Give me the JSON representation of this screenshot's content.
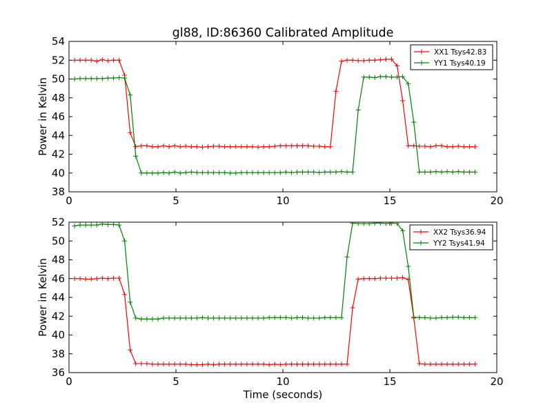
{
  "chart_data": [
    {
      "type": "line",
      "title": "gl88, ID:86360 Calibrated Amplitude",
      "xlabel": "",
      "ylabel": "Power in Kelvin",
      "xlim": [
        0,
        20
      ],
      "ylim": [
        38,
        54
      ],
      "x_ticks": [
        "0",
        "5",
        "10",
        "15",
        "20"
      ],
      "y_ticks": [
        "38",
        "40",
        "42",
        "44",
        "46",
        "48",
        "50",
        "52",
        "54"
      ],
      "grid": false,
      "legend_position": "top-right",
      "x": [
        0.26,
        0.52,
        0.78,
        1.04,
        1.3,
        1.56,
        1.82,
        2.08,
        2.34,
        2.6,
        2.86,
        3.12,
        3.38,
        3.64,
        3.9,
        4.16,
        4.42,
        4.68,
        4.94,
        5.2,
        5.46,
        5.72,
        5.98,
        6.24,
        6.5,
        6.76,
        7.02,
        7.28,
        7.54,
        7.8,
        8.06,
        8.32,
        8.58,
        8.84,
        9.1,
        9.36,
        9.62,
        9.88,
        10.14,
        10.4,
        10.66,
        10.92,
        11.18,
        11.44,
        11.7,
        11.96,
        12.22,
        12.48,
        12.74,
        13.0,
        13.26,
        13.52,
        13.78,
        14.04,
        14.3,
        14.56,
        14.82,
        15.08,
        15.34,
        15.6,
        15.86,
        16.12,
        16.38,
        16.64,
        16.9,
        17.16,
        17.42,
        17.68,
        17.94,
        18.2,
        18.46,
        18.72,
        18.98
      ],
      "series": [
        {
          "name": "XX1 Tsys42.83",
          "color": "#ff0000",
          "values": [
            52.0,
            52.0,
            52.0,
            52.0,
            51.9,
            52.05,
            51.95,
            52.0,
            52.0,
            50.4,
            44.3,
            42.8,
            42.9,
            42.9,
            42.8,
            42.8,
            42.9,
            42.8,
            42.9,
            42.8,
            42.85,
            42.8,
            42.8,
            42.75,
            42.8,
            42.85,
            42.85,
            42.8,
            42.8,
            42.8,
            42.8,
            42.8,
            42.8,
            42.75,
            42.8,
            42.8,
            42.85,
            42.9,
            42.9,
            42.9,
            42.9,
            42.9,
            42.9,
            42.85,
            42.85,
            42.8,
            42.8,
            48.7,
            51.9,
            52.0,
            52.0,
            51.95,
            51.95,
            52.0,
            52.0,
            52.05,
            52.1,
            52.1,
            51.4,
            47.7,
            42.9,
            42.9,
            42.85,
            42.85,
            42.8,
            42.9,
            42.9,
            42.8,
            42.8,
            42.85,
            42.8,
            42.8,
            42.8
          ]
        },
        {
          "name": "YY1 Tsys40.19",
          "color": "#008000",
          "values": [
            50.0,
            50.05,
            50.05,
            50.05,
            50.05,
            50.05,
            50.1,
            50.1,
            50.15,
            50.1,
            48.3,
            41.8,
            40.0,
            40.0,
            40.0,
            40.0,
            40.05,
            40.0,
            40.1,
            40.0,
            40.05,
            40.1,
            40.05,
            40.05,
            40.05,
            40.05,
            40.05,
            40.05,
            40.0,
            40.0,
            40.05,
            40.05,
            40.05,
            40.05,
            40.05,
            40.05,
            40.05,
            40.05,
            40.1,
            40.05,
            40.1,
            40.1,
            40.1,
            40.1,
            40.05,
            40.1,
            40.1,
            40.1,
            40.15,
            40.1,
            40.1,
            46.7,
            50.2,
            50.2,
            50.15,
            50.25,
            50.25,
            50.2,
            50.2,
            50.25,
            49.5,
            45.4,
            40.1,
            40.1,
            40.1,
            40.15,
            40.1,
            40.15,
            40.1,
            40.15,
            40.1,
            40.1,
            40.1
          ]
        }
      ]
    },
    {
      "type": "line",
      "title": "",
      "xlabel": "Time (seconds)",
      "ylabel": "Power in Kelvin",
      "xlim": [
        0,
        20
      ],
      "ylim": [
        36,
        52
      ],
      "x_ticks": [
        "0",
        "5",
        "10",
        "15",
        "20"
      ],
      "y_ticks": [
        "36",
        "38",
        "40",
        "42",
        "44",
        "46",
        "48",
        "50",
        "52"
      ],
      "grid": false,
      "legend_position": "top-right",
      "x": [
        0.26,
        0.52,
        0.78,
        1.04,
        1.3,
        1.56,
        1.82,
        2.08,
        2.34,
        2.6,
        2.86,
        3.12,
        3.38,
        3.64,
        3.9,
        4.16,
        4.42,
        4.68,
        4.94,
        5.2,
        5.46,
        5.72,
        5.98,
        6.24,
        6.5,
        6.76,
        7.02,
        7.28,
        7.54,
        7.8,
        8.06,
        8.32,
        8.58,
        8.84,
        9.1,
        9.36,
        9.62,
        9.88,
        10.14,
        10.4,
        10.66,
        10.92,
        11.18,
        11.44,
        11.7,
        11.96,
        12.22,
        12.48,
        12.74,
        13.0,
        13.26,
        13.52,
        13.78,
        14.04,
        14.3,
        14.56,
        14.82,
        15.08,
        15.34,
        15.6,
        15.86,
        16.12,
        16.38,
        16.64,
        16.9,
        17.16,
        17.42,
        17.68,
        17.94,
        18.2,
        18.46,
        18.72,
        18.98
      ],
      "series": [
        {
          "name": "XX2 Tsys36.94",
          "color": "#ff0000",
          "values": [
            46.0,
            46.0,
            45.95,
            45.95,
            46.0,
            46.05,
            46.0,
            46.05,
            46.05,
            44.3,
            38.4,
            36.95,
            36.95,
            36.95,
            36.9,
            36.9,
            36.9,
            36.9,
            36.9,
            36.9,
            36.9,
            36.85,
            36.85,
            36.85,
            36.9,
            36.85,
            36.9,
            36.9,
            36.9,
            36.9,
            36.9,
            36.9,
            36.9,
            36.9,
            36.9,
            36.85,
            36.9,
            36.85,
            36.9,
            36.9,
            36.9,
            36.9,
            36.9,
            36.9,
            36.9,
            36.9,
            36.9,
            36.9,
            36.9,
            36.9,
            42.9,
            45.95,
            46.0,
            46.0,
            46.0,
            46.05,
            46.05,
            46.05,
            46.05,
            46.1,
            45.9,
            41.8,
            36.95,
            36.9,
            36.9,
            36.9,
            36.9,
            36.9,
            36.9,
            36.9,
            36.9,
            36.9,
            36.9
          ]
        },
        {
          "name": "YY2 Tsys41.94",
          "color": "#008000",
          "values": [
            51.6,
            51.7,
            51.7,
            51.7,
            51.7,
            51.8,
            51.75,
            51.75,
            51.7,
            50.0,
            43.5,
            41.8,
            41.7,
            41.7,
            41.7,
            41.7,
            41.8,
            41.8,
            41.8,
            41.8,
            41.8,
            41.8,
            41.8,
            41.85,
            41.8,
            41.8,
            41.8,
            41.8,
            41.8,
            41.8,
            41.8,
            41.8,
            41.8,
            41.8,
            41.8,
            41.85,
            41.85,
            41.85,
            41.85,
            41.8,
            41.85,
            41.85,
            41.8,
            41.8,
            41.8,
            41.85,
            41.85,
            41.85,
            41.85,
            48.3,
            51.9,
            51.85,
            51.85,
            51.85,
            51.9,
            51.9,
            51.85,
            51.9,
            51.85,
            51.1,
            47.3,
            41.9,
            41.85,
            41.85,
            41.8,
            41.8,
            41.85,
            41.85,
            41.9,
            41.9,
            41.85,
            41.85,
            41.85
          ]
        }
      ]
    }
  ]
}
